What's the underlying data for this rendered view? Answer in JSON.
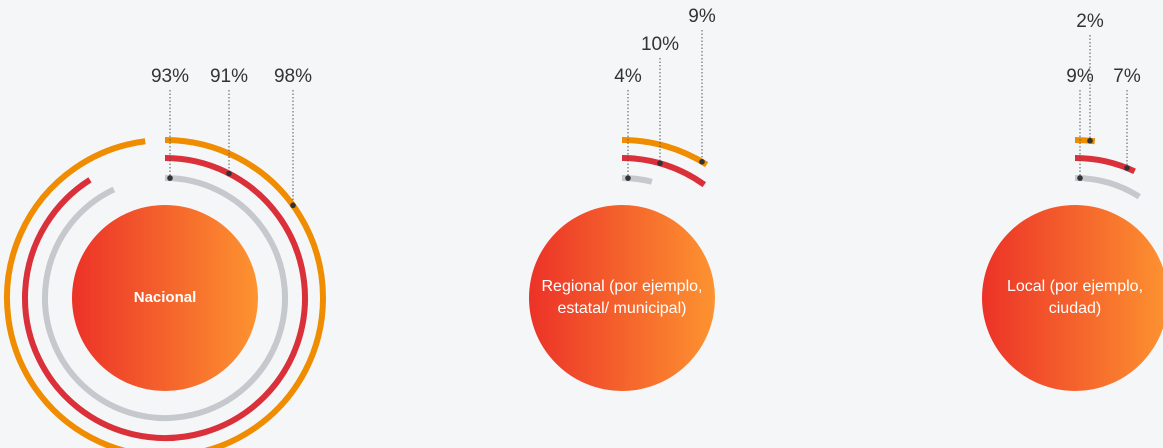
{
  "chart_data": {
    "type": "radial-bar",
    "categories": [
      "Nacional",
      "Regional (por ejemplo, estatal/ municipal)",
      "Local (por ejemplo, ciudad)"
    ],
    "ylim": [
      0,
      100
    ],
    "series": [
      {
        "color": "#f08c00",
        "values": [
          98,
          9,
          2
        ],
        "value_labels": [
          "98%",
          "9%",
          "2%"
        ]
      },
      {
        "color": "#d9303a",
        "values": [
          91,
          10,
          7
        ],
        "value_labels": [
          "91%",
          "10%",
          "7%"
        ]
      },
      {
        "color": "#c5c9cd",
        "values": [
          93,
          4,
          9
        ],
        "value_labels": [
          "93%",
          "4%",
          "9%"
        ]
      }
    ]
  }
}
